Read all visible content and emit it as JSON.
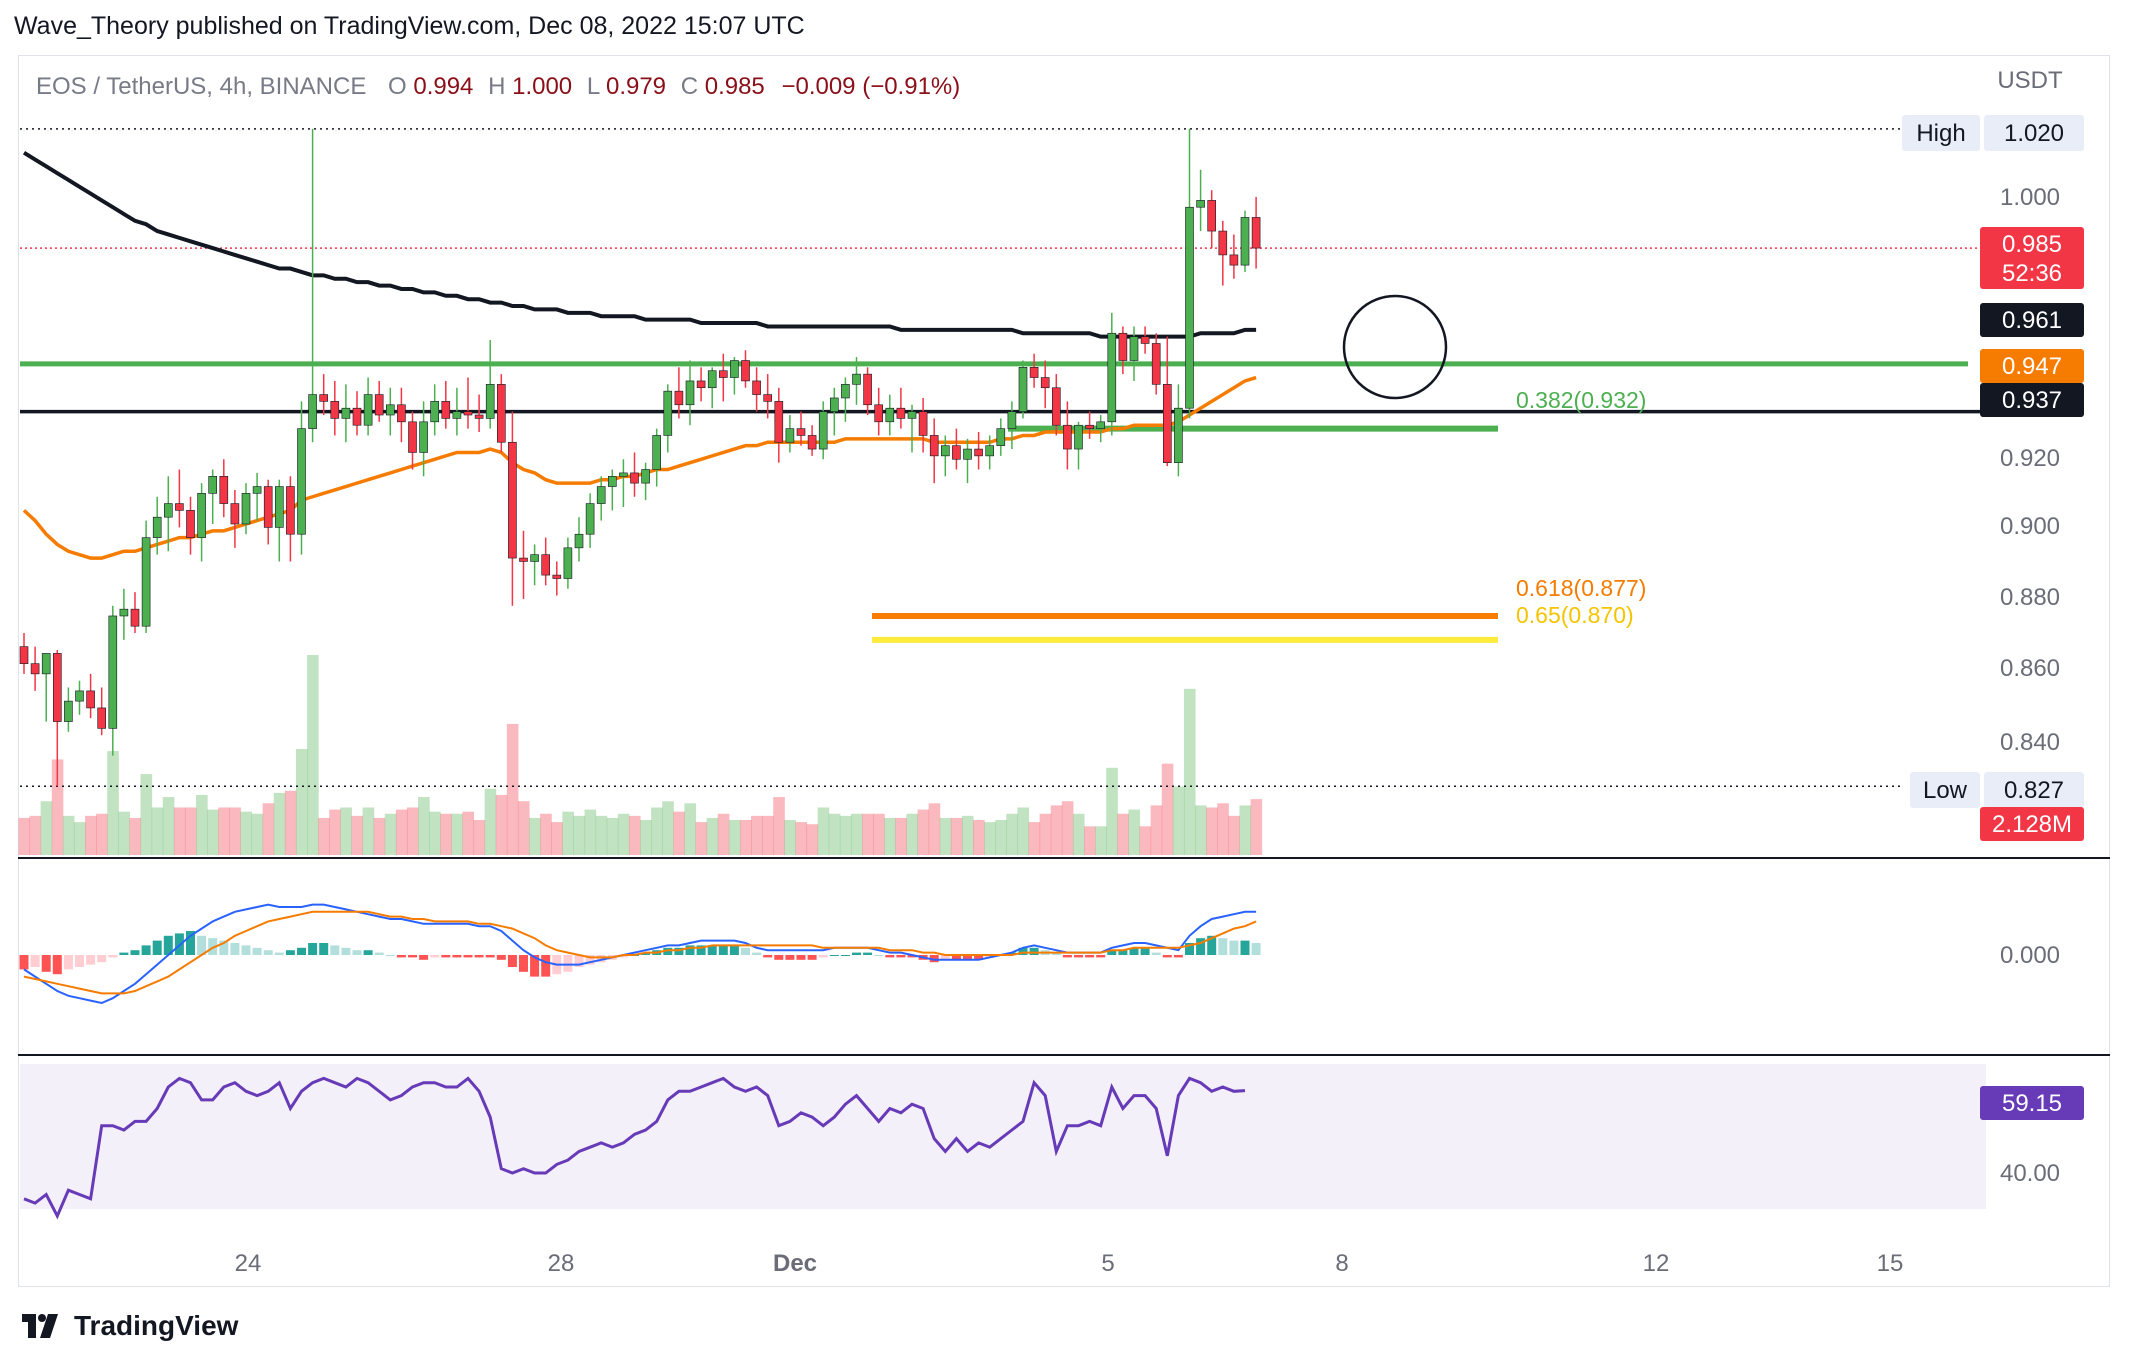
{
  "publisher": "Wave_Theory published on TradingView.com, Dec 08, 2022 15:07 UTC",
  "brand": "TradingView",
  "legend": {
    "symbol": "EOS / TetherUS, 4h, BINANCE",
    "o_label": "O",
    "o": "0.994",
    "h_label": "H",
    "h": "1.000",
    "l_label": "L",
    "l": "0.979",
    "c_label": "C",
    "c": "0.985",
    "change": "−0.009 (−0.91%)"
  },
  "axis": {
    "currency": "USDT",
    "price_ticks": [
      "1.000",
      "0.920",
      "0.900",
      "0.880",
      "0.860",
      "0.840"
    ],
    "macd_tick": "0.000",
    "rsi_tick": "40.00",
    "time_ticks": [
      "24",
      "28",
      "Dec",
      "5",
      "8",
      "12",
      "15"
    ]
  },
  "labels": {
    "high_label": "High",
    "high_value": "1.020",
    "low_label": "Low",
    "low_value": "0.827",
    "last_price": "0.985",
    "countdown": "52:36",
    "ma200": "0.961",
    "ema50": "0.947",
    "support": "0.937",
    "volume": "2.128M",
    "rsi": "59.15"
  },
  "fib": {
    "f382": "0.382(0.932)",
    "f618": "0.618(0.877)",
    "f65": "0.65(0.870)"
  },
  "colors": {
    "up": "#4caf50",
    "down": "#f23645",
    "ema50": "#f57c00",
    "ma200": "#131722",
    "support_green": "#4caf50",
    "fib618": "#f57c00",
    "fib65": "#ffeb3b",
    "macd": "#2962ff",
    "signal": "#f57c00",
    "rsi": "#673ab7"
  },
  "chart_data": {
    "type": "candlestick",
    "symbol": "EOS/USDT",
    "timeframe": "4h",
    "exchange": "BINANCE",
    "price_range": [
      0.827,
      1.02
    ],
    "horizontal_levels": [
      {
        "value": 0.951,
        "color": "green"
      },
      {
        "value": 0.937,
        "color": "black"
      },
      {
        "value": 0.932
      },
      {
        "value": 0.877
      },
      {
        "value": 0.87
      }
    ],
    "candles": [
      [
        0.868,
        0.872,
        0.86,
        0.863
      ],
      [
        0.863,
        0.868,
        0.855,
        0.86
      ],
      [
        0.86,
        0.866,
        0.846,
        0.866
      ],
      [
        0.866,
        0.867,
        0.827,
        0.846
      ],
      [
        0.846,
        0.856,
        0.843,
        0.852
      ],
      [
        0.852,
        0.858,
        0.848,
        0.855
      ],
      [
        0.855,
        0.86,
        0.847,
        0.85
      ],
      [
        0.85,
        0.856,
        0.842,
        0.844
      ],
      [
        0.844,
        0.88,
        0.836,
        0.877
      ],
      [
        0.877,
        0.885,
        0.87,
        0.879
      ],
      [
        0.879,
        0.884,
        0.872,
        0.874
      ],
      [
        0.874,
        0.905,
        0.872,
        0.9
      ],
      [
        0.9,
        0.912,
        0.895,
        0.906
      ],
      [
        0.906,
        0.918,
        0.896,
        0.91
      ],
      [
        0.91,
        0.92,
        0.903,
        0.908
      ],
      [
        0.908,
        0.912,
        0.895,
        0.9
      ],
      [
        0.9,
        0.916,
        0.893,
        0.913
      ],
      [
        0.913,
        0.92,
        0.904,
        0.918
      ],
      [
        0.918,
        0.923,
        0.906,
        0.91
      ],
      [
        0.91,
        0.914,
        0.897,
        0.904
      ],
      [
        0.904,
        0.916,
        0.901,
        0.913
      ],
      [
        0.913,
        0.919,
        0.905,
        0.915
      ],
      [
        0.915,
        0.917,
        0.898,
        0.903
      ],
      [
        0.903,
        0.917,
        0.893,
        0.915
      ],
      [
        0.915,
        0.918,
        0.893,
        0.901
      ],
      [
        0.901,
        0.94,
        0.895,
        0.932
      ],
      [
        0.932,
        1.02,
        0.928,
        0.942
      ],
      [
        0.942,
        0.948,
        0.936,
        0.94
      ],
      [
        0.94,
        0.946,
        0.93,
        0.935
      ],
      [
        0.935,
        0.945,
        0.928,
        0.938
      ],
      [
        0.938,
        0.943,
        0.93,
        0.933
      ],
      [
        0.933,
        0.947,
        0.93,
        0.942
      ],
      [
        0.942,
        0.946,
        0.934,
        0.936
      ],
      [
        0.936,
        0.944,
        0.93,
        0.939
      ],
      [
        0.939,
        0.944,
        0.928,
        0.934
      ],
      [
        0.934,
        0.937,
        0.92,
        0.925
      ],
      [
        0.925,
        0.94,
        0.918,
        0.934
      ],
      [
        0.934,
        0.945,
        0.93,
        0.94
      ],
      [
        0.94,
        0.946,
        0.932,
        0.935
      ],
      [
        0.935,
        0.944,
        0.93,
        0.937
      ],
      [
        0.937,
        0.947,
        0.932,
        0.936
      ],
      [
        0.936,
        0.942,
        0.931,
        0.935
      ],
      [
        0.935,
        0.958,
        0.932,
        0.945
      ],
      [
        0.945,
        0.948,
        0.925,
        0.928
      ],
      [
        0.928,
        0.937,
        0.88,
        0.894
      ],
      [
        0.894,
        0.902,
        0.882,
        0.893
      ],
      [
        0.893,
        0.898,
        0.886,
        0.895
      ],
      [
        0.895,
        0.9,
        0.886,
        0.889
      ],
      [
        0.889,
        0.893,
        0.883,
        0.888
      ],
      [
        0.888,
        0.9,
        0.885,
        0.897
      ],
      [
        0.897,
        0.906,
        0.893,
        0.901
      ],
      [
        0.901,
        0.913,
        0.897,
        0.91
      ],
      [
        0.91,
        0.918,
        0.905,
        0.915
      ],
      [
        0.915,
        0.92,
        0.908,
        0.918
      ],
      [
        0.918,
        0.923,
        0.909,
        0.919
      ],
      [
        0.919,
        0.925,
        0.912,
        0.916
      ],
      [
        0.916,
        0.922,
        0.911,
        0.92
      ],
      [
        0.92,
        0.932,
        0.915,
        0.93
      ],
      [
        0.93,
        0.945,
        0.925,
        0.943
      ],
      [
        0.943,
        0.95,
        0.935,
        0.939
      ],
      [
        0.939,
        0.952,
        0.933,
        0.946
      ],
      [
        0.946,
        0.95,
        0.94,
        0.944
      ],
      [
        0.944,
        0.95,
        0.938,
        0.949
      ],
      [
        0.949,
        0.954,
        0.94,
        0.947
      ],
      [
        0.947,
        0.953,
        0.942,
        0.952
      ],
      [
        0.952,
        0.955,
        0.944,
        0.946
      ],
      [
        0.946,
        0.95,
        0.937,
        0.942
      ],
      [
        0.942,
        0.948,
        0.935,
        0.94
      ],
      [
        0.94,
        0.944,
        0.922,
        0.928
      ],
      [
        0.928,
        0.936,
        0.925,
        0.932
      ],
      [
        0.932,
        0.937,
        0.927,
        0.93
      ],
      [
        0.93,
        0.933,
        0.924,
        0.926
      ],
      [
        0.926,
        0.94,
        0.923,
        0.937
      ],
      [
        0.937,
        0.944,
        0.93,
        0.941
      ],
      [
        0.941,
        0.947,
        0.934,
        0.945
      ],
      [
        0.945,
        0.953,
        0.939,
        0.948
      ],
      [
        0.948,
        0.95,
        0.936,
        0.939
      ],
      [
        0.939,
        0.944,
        0.93,
        0.934
      ],
      [
        0.934,
        0.942,
        0.93,
        0.938
      ],
      [
        0.938,
        0.944,
        0.932,
        0.935
      ],
      [
        0.935,
        0.939,
        0.925,
        0.937
      ],
      [
        0.937,
        0.941,
        0.925,
        0.93
      ],
      [
        0.93,
        0.935,
        0.916,
        0.924
      ],
      [
        0.924,
        0.93,
        0.918,
        0.927
      ],
      [
        0.927,
        0.932,
        0.92,
        0.923
      ],
      [
        0.923,
        0.929,
        0.916,
        0.926
      ],
      [
        0.926,
        0.931,
        0.92,
        0.924
      ],
      [
        0.924,
        0.93,
        0.92,
        0.927
      ],
      [
        0.927,
        0.935,
        0.924,
        0.932
      ],
      [
        0.932,
        0.94,
        0.926,
        0.937
      ],
      [
        0.937,
        0.952,
        0.935,
        0.95
      ],
      [
        0.95,
        0.954,
        0.944,
        0.947
      ],
      [
        0.947,
        0.952,
        0.938,
        0.944
      ],
      [
        0.944,
        0.948,
        0.93,
        0.933
      ],
      [
        0.933,
        0.94,
        0.92,
        0.926
      ],
      [
        0.926,
        0.934,
        0.92,
        0.933
      ],
      [
        0.933,
        0.937,
        0.929,
        0.932
      ],
      [
        0.932,
        0.936,
        0.928,
        0.934
      ],
      [
        0.934,
        0.966,
        0.93,
        0.96
      ],
      [
        0.96,
        0.962,
        0.948,
        0.952
      ],
      [
        0.952,
        0.962,
        0.946,
        0.959
      ],
      [
        0.959,
        0.962,
        0.954,
        0.957
      ],
      [
        0.957,
        0.96,
        0.942,
        0.945
      ],
      [
        0.945,
        0.959,
        0.921,
        0.922
      ],
      [
        0.922,
        0.945,
        0.918,
        0.938
      ],
      [
        0.938,
        1.02,
        0.935,
        0.997
      ],
      [
        0.997,
        1.008,
        0.99,
        0.999
      ],
      [
        0.999,
        1.002,
        0.985,
        0.99
      ],
      [
        0.99,
        0.993,
        0.974,
        0.983
      ],
      [
        0.983,
        0.989,
        0.976,
        0.98
      ],
      [
        0.98,
        0.996,
        0.978,
        0.994
      ],
      [
        0.994,
        1.0,
        0.979,
        0.985
      ]
    ],
    "ema50": [
      0.908,
      0.905,
      0.901,
      0.898,
      0.896,
      0.895,
      0.894,
      0.894,
      0.895,
      0.896,
      0.896,
      0.897,
      0.898,
      0.899,
      0.9,
      0.9,
      0.901,
      0.902,
      0.902,
      0.903,
      0.904,
      0.905,
      0.906,
      0.907,
      0.908,
      0.911,
      0.912,
      0.913,
      0.914,
      0.915,
      0.916,
      0.917,
      0.918,
      0.919,
      0.92,
      0.921,
      0.922,
      0.923,
      0.924,
      0.925,
      0.925,
      0.925,
      0.926,
      0.925,
      0.922,
      0.92,
      0.919,
      0.917,
      0.916,
      0.916,
      0.916,
      0.916,
      0.917,
      0.917,
      0.918,
      0.918,
      0.919,
      0.92,
      0.92,
      0.921,
      0.922,
      0.923,
      0.924,
      0.925,
      0.926,
      0.927,
      0.927,
      0.928,
      0.928,
      0.928,
      0.928,
      0.928,
      0.928,
      0.928,
      0.929,
      0.929,
      0.929,
      0.929,
      0.929,
      0.929,
      0.929,
      0.929,
      0.928,
      0.928,
      0.928,
      0.928,
      0.928,
      0.928,
      0.929,
      0.929,
      0.93,
      0.93,
      0.931,
      0.931,
      0.931,
      0.931,
      0.931,
      0.931,
      0.932,
      0.932,
      0.933,
      0.933,
      0.933,
      0.933,
      0.934,
      0.936,
      0.938,
      0.94,
      0.942,
      0.944,
      0.946,
      0.947
    ],
    "ma200": [
      1.013,
      1.011,
      1.009,
      1.007,
      1.005,
      1.003,
      1.001,
      0.999,
      0.997,
      0.995,
      0.993,
      0.992,
      0.99,
      0.989,
      0.988,
      0.987,
      0.986,
      0.985,
      0.984,
      0.983,
      0.982,
      0.981,
      0.98,
      0.979,
      0.979,
      0.978,
      0.977,
      0.977,
      0.976,
      0.976,
      0.975,
      0.975,
      0.974,
      0.974,
      0.973,
      0.973,
      0.972,
      0.972,
      0.971,
      0.971,
      0.97,
      0.97,
      0.969,
      0.969,
      0.968,
      0.968,
      0.967,
      0.967,
      0.967,
      0.966,
      0.966,
      0.966,
      0.965,
      0.965,
      0.965,
      0.965,
      0.964,
      0.964,
      0.964,
      0.964,
      0.964,
      0.963,
      0.963,
      0.963,
      0.963,
      0.963,
      0.963,
      0.962,
      0.962,
      0.962,
      0.962,
      0.962,
      0.962,
      0.962,
      0.962,
      0.962,
      0.962,
      0.962,
      0.962,
      0.961,
      0.961,
      0.961,
      0.961,
      0.961,
      0.961,
      0.961,
      0.961,
      0.961,
      0.961,
      0.961,
      0.96,
      0.96,
      0.96,
      0.96,
      0.96,
      0.96,
      0.96,
      0.959,
      0.959,
      0.959,
      0.959,
      0.959,
      0.959,
      0.959,
      0.959,
      0.959,
      0.96,
      0.96,
      0.96,
      0.96,
      0.961,
      0.961
    ],
    "volume_max_m": 12.0,
    "volume_last_m": 2.128,
    "macd": {
      "zero_label": "0.000",
      "hist": [
        -0.006,
        -0.005,
        -0.007,
        -0.008,
        -0.006,
        -0.005,
        -0.004,
        -0.003,
        -0.001,
        0.001,
        0.002,
        0.004,
        0.006,
        0.008,
        0.009,
        0.01,
        0.008,
        0.007,
        0.006,
        0.005,
        0.004,
        0.003,
        0.002,
        0.001,
        0.002,
        0.003,
        0.005,
        0.005,
        0.004,
        0.003,
        0.002,
        0.002,
        0.001,
        0.0,
        -0.001,
        -0.001,
        -0.002,
        -0.001,
        -0.001,
        -0.001,
        -0.001,
        -0.001,
        -0.001,
        -0.002,
        -0.005,
        -0.007,
        -0.009,
        -0.009,
        -0.008,
        -0.007,
        -0.005,
        -0.004,
        -0.003,
        -0.002,
        -0.001,
        0.0,
        0.001,
        0.002,
        0.003,
        0.003,
        0.004,
        0.004,
        0.004,
        0.004,
        0.004,
        0.003,
        0.001,
        -0.001,
        -0.002,
        -0.002,
        -0.002,
        -0.002,
        -0.001,
        0.0,
        0.0,
        0.001,
        0.001,
        0.0,
        -0.001,
        -0.001,
        -0.001,
        -0.002,
        -0.003,
        -0.002,
        -0.002,
        -0.002,
        -0.002,
        -0.001,
        0.0,
        0.001,
        0.003,
        0.003,
        0.002,
        0.001,
        -0.001,
        -0.001,
        -0.001,
        -0.001,
        0.002,
        0.002,
        0.003,
        0.003,
        0.001,
        -0.001,
        -0.001,
        0.005,
        0.007,
        0.008,
        0.007,
        0.006,
        0.006,
        0.005
      ],
      "macd_line": [
        -0.006,
        -0.009,
        -0.012,
        -0.015,
        -0.017,
        -0.018,
        -0.019,
        -0.02,
        -0.018,
        -0.015,
        -0.012,
        -0.008,
        -0.004,
        0.0,
        0.004,
        0.008,
        0.011,
        0.014,
        0.016,
        0.018,
        0.019,
        0.02,
        0.021,
        0.02,
        0.02,
        0.02,
        0.021,
        0.021,
        0.02,
        0.019,
        0.018,
        0.017,
        0.016,
        0.015,
        0.015,
        0.014,
        0.013,
        0.013,
        0.013,
        0.013,
        0.013,
        0.012,
        0.012,
        0.01,
        0.006,
        0.002,
        -0.001,
        -0.003,
        -0.004,
        -0.004,
        -0.004,
        -0.003,
        -0.002,
        -0.001,
        0.0,
        0.001,
        0.002,
        0.003,
        0.004,
        0.004,
        0.005,
        0.006,
        0.006,
        0.006,
        0.006,
        0.005,
        0.003,
        0.002,
        0.002,
        0.002,
        0.002,
        0.002,
        0.002,
        0.003,
        0.003,
        0.003,
        0.003,
        0.002,
        0.001,
        0.001,
        0.0,
        -0.001,
        -0.002,
        -0.002,
        -0.002,
        -0.002,
        -0.002,
        -0.001,
        0.0,
        0.001,
        0.003,
        0.004,
        0.003,
        0.002,
        0.001,
        0.001,
        0.001,
        0.001,
        0.003,
        0.004,
        0.005,
        0.005,
        0.004,
        0.003,
        0.002,
        0.008,
        0.012,
        0.015,
        0.016,
        0.017,
        0.018,
        0.018
      ],
      "signal_line": [
        -0.009,
        -0.01,
        -0.011,
        -0.012,
        -0.013,
        -0.014,
        -0.015,
        -0.016,
        -0.016,
        -0.016,
        -0.015,
        -0.013,
        -0.011,
        -0.009,
        -0.006,
        -0.003,
        0.0,
        0.003,
        0.005,
        0.008,
        0.01,
        0.012,
        0.014,
        0.015,
        0.016,
        0.017,
        0.018,
        0.018,
        0.018,
        0.018,
        0.018,
        0.018,
        0.017,
        0.016,
        0.016,
        0.015,
        0.015,
        0.014,
        0.014,
        0.014,
        0.014,
        0.013,
        0.013,
        0.012,
        0.011,
        0.009,
        0.007,
        0.004,
        0.002,
        0.001,
        0.0,
        -0.001,
        -0.001,
        -0.001,
        0.0,
        0.0,
        0.001,
        0.001,
        0.002,
        0.002,
        0.003,
        0.003,
        0.004,
        0.004,
        0.004,
        0.004,
        0.004,
        0.004,
        0.004,
        0.004,
        0.004,
        0.004,
        0.003,
        0.003,
        0.003,
        0.003,
        0.003,
        0.003,
        0.002,
        0.002,
        0.002,
        0.001,
        0.001,
        0.0,
        0.0,
        0.0,
        0.0,
        0.0,
        0.0,
        0.0,
        0.001,
        0.001,
        0.001,
        0.001,
        0.001,
        0.001,
        0.001,
        0.001,
        0.002,
        0.002,
        0.003,
        0.003,
        0.003,
        0.003,
        0.003,
        0.004,
        0.005,
        0.007,
        0.009,
        0.011,
        0.012,
        0.014
      ]
    },
    "rsi": {
      "last": 59.15,
      "tick": 40.0,
      "values": [
        34,
        33,
        35,
        30,
        36,
        35,
        34,
        51,
        51,
        50,
        52,
        52,
        55,
        60,
        62,
        61,
        57,
        57,
        60,
        61,
        59,
        58,
        59,
        61,
        55,
        59,
        61,
        62,
        61,
        60,
        62,
        61,
        59,
        57,
        58,
        60,
        61,
        61,
        60,
        60,
        62,
        59,
        53,
        41,
        40,
        41,
        40,
        40,
        42,
        43,
        45,
        46,
        47,
        46,
        47,
        49,
        50,
        52,
        57,
        59,
        59,
        60,
        61,
        62,
        60,
        59,
        60,
        58,
        51,
        52,
        54,
        53,
        51,
        53,
        56,
        58,
        55,
        52,
        55,
        54,
        56,
        55,
        48,
        45,
        48,
        45,
        47,
        46,
        48,
        50,
        52,
        61,
        58,
        45,
        51,
        51,
        52,
        51,
        60,
        55,
        58,
        58,
        55,
        44,
        58,
        62,
        61,
        59,
        60,
        59,
        59.15
      ]
    }
  }
}
